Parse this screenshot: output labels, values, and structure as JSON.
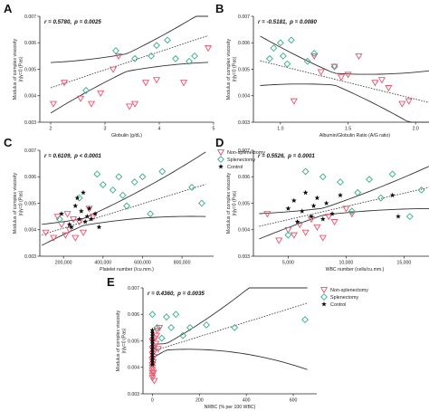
{
  "colors": {
    "non_splenectomy": "#e8546e",
    "splenectomy": "#3aab8c",
    "control": "#111111",
    "fit": "#333333"
  },
  "legend_labels": {
    "non_splenectomy": "Non-splenectomy",
    "splenectomy": "Splenectomy",
    "control": "Control"
  },
  "chart_data": [
    {
      "panel": "A",
      "type": "scatter",
      "stat_r": "r = 0.5780,",
      "stat_p": "p = 0.0025",
      "xlabel": "Globulin (g/dL)",
      "ylabel_1": "Modulus of complex viscosity",
      "ylabel_2": "|η|γ=0 (Pas)",
      "xlim": [
        1.8,
        5.0
      ],
      "ylim": [
        0.003,
        0.007
      ],
      "xticks": [
        {
          "v": 2,
          "label": "2"
        },
        {
          "v": 3,
          "label": "3"
        },
        {
          "v": 4,
          "label": "4"
        },
        {
          "v": 5,
          "label": "5"
        }
      ],
      "yticks": [
        {
          "v": 0.003,
          "label": "0.003"
        },
        {
          "v": 0.004,
          "label": "0.004"
        },
        {
          "v": 0.005,
          "label": "0.005"
        },
        {
          "v": 0.006,
          "label": "0.006"
        },
        {
          "v": 0.007,
          "label": "0.007"
        }
      ],
      "legend": [],
      "fit": {
        "slope": 0.00068,
        "intercept": 0.00294
      },
      "ci_band": {
        "center": 3.4,
        "base": 0.00033,
        "growth": 0.00031
      },
      "series": [
        {
          "group": "non_splenectomy",
          "x": [
            2.05,
            2.25,
            2.55,
            2.75,
            2.92,
            3.15,
            3.25,
            3.45,
            3.55,
            3.75,
            3.95,
            4.45,
            4.9
          ],
          "y": [
            0.0037,
            0.0045,
            0.0039,
            0.0037,
            0.0041,
            0.005,
            0.0055,
            0.0036,
            0.0037,
            0.0045,
            0.0046,
            0.0045,
            0.0058
          ]
        },
        {
          "group": "splenectomy",
          "x": [
            2.65,
            3.2,
            3.55,
            3.85,
            3.95,
            4.15,
            4.3,
            4.55,
            4.65
          ],
          "y": [
            0.0042,
            0.0057,
            0.0054,
            0.0055,
            0.0059,
            0.0061,
            0.0054,
            0.0053,
            0.0055
          ]
        }
      ]
    },
    {
      "panel": "B",
      "type": "scatter",
      "stat_r": "r = -0.5181,",
      "stat_p": "p = 0.0080",
      "xlabel": "Albumin/Globulin Ratio (A/G ratio)",
      "ylabel_1": "Modulus of complex viscosity",
      "ylabel_2": "|η|γ=0 (Pas)",
      "xlim": [
        0.8,
        2.3
      ],
      "ylim": [
        0.003,
        0.007
      ],
      "xticks": [
        {
          "v": 1.0,
          "label": "1.0"
        },
        {
          "v": 1.5,
          "label": "1.5"
        },
        {
          "v": 2.0,
          "label": "2.0"
        }
      ],
      "yticks": [
        {
          "v": 0.003,
          "label": "0.003"
        },
        {
          "v": 0.004,
          "label": "0.004"
        },
        {
          "v": 0.005,
          "label": "0.005"
        },
        {
          "v": 0.006,
          "label": "0.006"
        },
        {
          "v": 0.007,
          "label": "0.007"
        }
      ],
      "legend": [
        "non_splenectomy",
        "splenectomy"
      ],
      "fit": {
        "slope": -0.00126,
        "intercept": 0.00639
      },
      "ci_band": {
        "center": 1.4,
        "base": 0.00022,
        "growth": 0.00095
      },
      "series": [
        {
          "group": "non_splenectomy",
          "x": [
            1.1,
            1.25,
            1.4,
            1.5,
            1.58,
            1.7,
            1.75,
            1.8,
            1.9,
            1.95,
            2.2,
            1.45,
            1.3
          ],
          "y": [
            0.0038,
            0.0055,
            0.0051,
            0.0048,
            0.0055,
            0.0045,
            0.0046,
            0.0043,
            0.0037,
            0.0038,
            0.0038,
            0.0047,
            0.0049
          ]
        },
        {
          "group": "splenectomy",
          "x": [
            0.92,
            0.95,
            1.0,
            1.02,
            1.05,
            1.08,
            1.2,
            1.25,
            1.4
          ],
          "y": [
            0.0054,
            0.0058,
            0.006,
            0.0055,
            0.0052,
            0.0061,
            0.0053,
            0.0056,
            0.0051
          ]
        }
      ]
    },
    {
      "panel": "C",
      "type": "scatter",
      "stat_r": "r = 0.6109,",
      "stat_p": "p < 0.0001",
      "xlabel": "Platelet number (/cu.mm.)",
      "ylabel_1": "Modulus of complex viscosity",
      "ylabel_2": "|η|γ=0 (Pas)",
      "xlim": [
        80000,
        960000
      ],
      "ylim": [
        0.003,
        0.007
      ],
      "xticks": [
        {
          "v": 200000,
          "label": "200,000"
        },
        {
          "v": 400000,
          "label": "400,000"
        },
        {
          "v": 600000,
          "label": "600,000"
        },
        {
          "v": 800000,
          "label": "800,000"
        }
      ],
      "yticks": [
        {
          "v": 0.003,
          "label": "0.003"
        },
        {
          "v": 0.004,
          "label": "0.004"
        },
        {
          "v": 0.005,
          "label": "0.005"
        },
        {
          "v": 0.006,
          "label": "0.006"
        },
        {
          "v": 0.007,
          "label": "0.007"
        }
      ],
      "legend": [
        "non_splenectomy",
        "splenectomy",
        "control"
      ],
      "fit": {
        "slope": 2.3e-09,
        "intercept": 0.0036
      },
      "ci_band": {
        "center": 300000,
        "base": 0.00013,
        "growth": 1.03e-09
      },
      "series": [
        {
          "group": "non_splenectomy",
          "x": [
            110000,
            150000,
            170000,
            190000,
            210000,
            220000,
            230000,
            250000,
            260000,
            280000,
            300000,
            330000,
            350000
          ],
          "y": [
            0.0039,
            0.0037,
            0.0045,
            0.0042,
            0.0038,
            0.0046,
            0.004,
            0.0044,
            0.0037,
            0.0043,
            0.0039,
            0.0048,
            0.0045
          ]
        },
        {
          "group": "splenectomy",
          "x": [
            180000,
            280000,
            370000,
            400000,
            450000,
            480000,
            500000,
            520000,
            560000,
            600000,
            640000,
            700000,
            850000,
            900000
          ],
          "y": [
            0.0044,
            0.0052,
            0.0061,
            0.0057,
            0.0055,
            0.006,
            0.0053,
            0.0049,
            0.0058,
            0.006,
            0.0046,
            0.0062,
            0.0056,
            0.005
          ]
        },
        {
          "group": "control",
          "x": [
            190000,
            230000,
            240000,
            260000,
            270000,
            280000,
            290000,
            300000,
            310000,
            320000,
            330000,
            340000,
            360000,
            380000
          ],
          "y": [
            0.0046,
            0.0042,
            0.0041,
            0.0049,
            0.0052,
            0.0044,
            0.0047,
            0.0054,
            0.0043,
            0.0045,
            0.0048,
            0.0044,
            0.0046,
            0.0041
          ]
        }
      ]
    },
    {
      "panel": "D",
      "type": "scatter",
      "stat_r": "r = 0.5526,",
      "stat_p": "p = 0.0001",
      "xlabel": "WBC number (cells/cu.mm.)",
      "ylabel_1": "Modulus of complex viscosity",
      "ylabel_2": "|η|γ=0 (Pas)",
      "xlim": [
        2000,
        19500
      ],
      "ylim": [
        0.003,
        0.007
      ],
      "xticks": [
        {
          "v": 5000,
          "label": "5,000"
        },
        {
          "v": 10000,
          "label": "10,000"
        },
        {
          "v": 15000,
          "label": "15,000"
        }
      ],
      "yticks": [
        {
          "v": 0.003,
          "label": "0.003"
        },
        {
          "v": 0.004,
          "label": "0.004"
        },
        {
          "v": 0.005,
          "label": "0.005"
        },
        {
          "v": 0.006,
          "label": "0.006"
        },
        {
          "v": 0.007,
          "label": "0.007"
        }
      ],
      "legend": [
        "non_splenectomy",
        "splenectomy",
        "control"
      ],
      "fit": {
        "slope": 1e-07,
        "intercept": 0.00388
      },
      "ci_band": {
        "center": 8000,
        "base": 0.00013,
        "growth": 4.8e-08
      },
      "series": [
        {
          "group": "non_splenectomy",
          "x": [
            3200,
            4200,
            5000,
            5500,
            6000,
            6500,
            7000,
            7500,
            8000,
            8500,
            9000,
            10000,
            10500
          ],
          "y": [
            0.0046,
            0.0036,
            0.004,
            0.0038,
            0.0042,
            0.0039,
            0.0044,
            0.0041,
            0.0037,
            0.0045,
            0.0043,
            0.0048,
            0.0046
          ]
        },
        {
          "group": "splenectomy",
          "x": [
            5000,
            6500,
            8000,
            9500,
            10500,
            11000,
            12000,
            13000,
            14000,
            15500,
            16500,
            18000,
            18500
          ],
          "y": [
            0.0038,
            0.0062,
            0.006,
            0.0058,
            0.0047,
            0.0054,
            0.0059,
            0.0052,
            0.0061,
            0.0045,
            0.0055,
            0.0056,
            0.0061
          ]
        },
        {
          "group": "control",
          "x": [
            5000,
            5500,
            5800,
            6200,
            6500,
            7000,
            7200,
            7500,
            8000,
            8300,
            8800,
            9500,
            14000,
            14500
          ],
          "y": [
            0.0048,
            0.0051,
            0.0043,
            0.0047,
            0.0054,
            0.0045,
            0.0049,
            0.0052,
            0.0044,
            0.005,
            0.0046,
            0.0053,
            0.0053,
            0.0045
          ]
        }
      ]
    },
    {
      "panel": "E",
      "type": "scatter",
      "stat_r": "r = 0.4360,",
      "stat_p": "p = 0.0035",
      "xlabel": "NRBC (% per 100 WBC)",
      "ylabel_1": "Modulus of complex viscosity",
      "ylabel_2": "|η|γ=0 (Pas)",
      "xlim": [
        -40,
        700
      ],
      "ylim": [
        0.003,
        0.007
      ],
      "xticks": [
        {
          "v": 0,
          "label": "0"
        },
        {
          "v": 200,
          "label": "200"
        },
        {
          "v": 400,
          "label": "400"
        },
        {
          "v": 600,
          "label": "600"
        }
      ],
      "yticks": [
        {
          "v": 0.003,
          "label": "0.003"
        },
        {
          "v": 0.004,
          "label": "0.004"
        },
        {
          "v": 0.005,
          "label": "0.005"
        },
        {
          "v": 0.006,
          "label": "0.006"
        },
        {
          "v": 0.007,
          "label": "0.007"
        }
      ],
      "legend": [
        "non_splenectomy",
        "splenectomy",
        "control"
      ],
      "fit": {
        "slope": 2.75e-06,
        "intercept": 0.00461
      },
      "ci_band": {
        "center": 60,
        "base": 0.00012,
        "growth": 2.2e-06
      },
      "series": [
        {
          "group": "non_splenectomy",
          "x": [
            0,
            0,
            0,
            0,
            0,
            0,
            0,
            0,
            0,
            0,
            3,
            5,
            8,
            10,
            12,
            15,
            18,
            20,
            25,
            30,
            5,
            8
          ],
          "y": [
            0.0038,
            0.0039,
            0.0037,
            0.0041,
            0.0043,
            0.0045,
            0.0047,
            0.005,
            0.0036,
            0.004,
            0.0042,
            0.0044,
            0.0046,
            0.0048,
            0.0051,
            0.0049,
            0.0052,
            0.0054,
            0.0047,
            0.0055,
            0.0038,
            0.0035
          ]
        },
        {
          "group": "splenectomy",
          "x": [
            0,
            20,
            40,
            60,
            80,
            100,
            130,
            160,
            230,
            350,
            650
          ],
          "y": [
            0.006,
            0.0055,
            0.0051,
            0.0059,
            0.0055,
            0.006,
            0.0052,
            0.0055,
            0.0056,
            0.0055,
            0.0058
          ]
        },
        {
          "group": "control",
          "x": [
            0,
            0,
            0,
            0,
            0,
            0,
            0,
            0,
            0,
            0,
            0,
            0,
            0,
            0
          ],
          "y": [
            0.0041,
            0.0043,
            0.0044,
            0.0045,
            0.0046,
            0.0047,
            0.0048,
            0.0049,
            0.005,
            0.0051,
            0.0052,
            0.0053,
            0.0054,
            0.0042
          ]
        }
      ]
    }
  ]
}
